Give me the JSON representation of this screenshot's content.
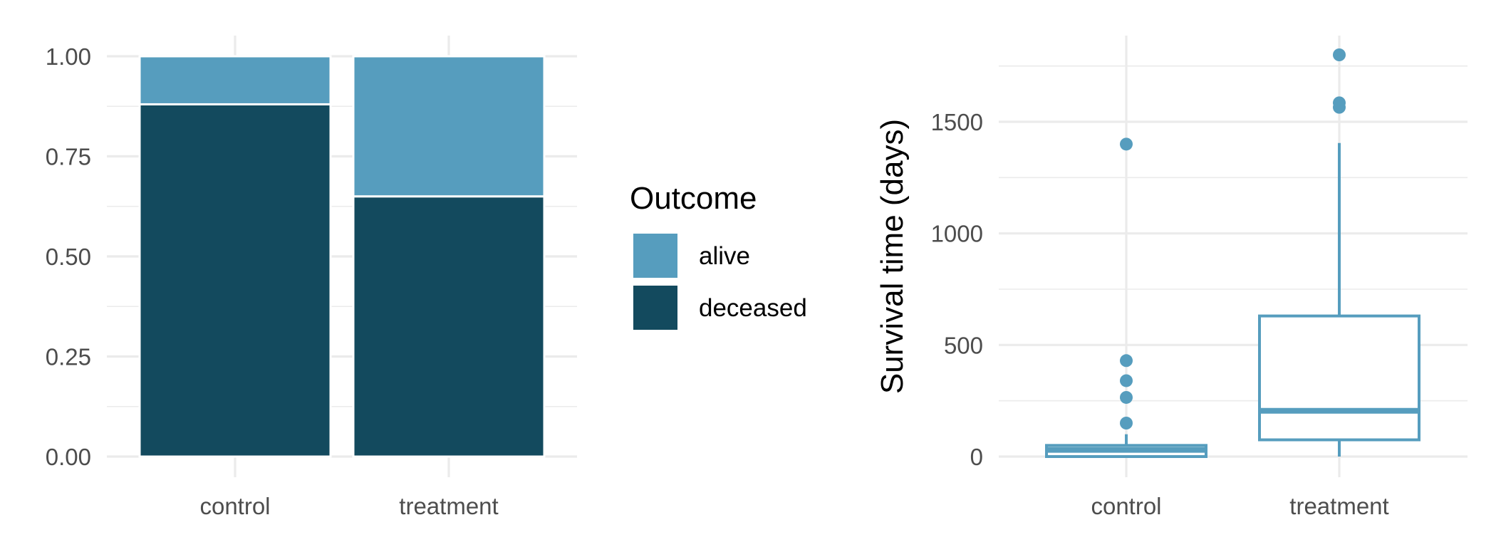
{
  "chart_data": [
    {
      "type": "bar",
      "stacked": true,
      "title": "",
      "xlabel": "",
      "ylabel": "",
      "categories": [
        "control",
        "treatment"
      ],
      "ylim": [
        0,
        1
      ],
      "yticks": [
        0,
        0.25,
        0.5,
        0.75,
        1
      ],
      "ytick_labels": [
        "0.00",
        "0.25",
        "0.50",
        "0.75",
        "1.00"
      ],
      "series": [
        {
          "name": "deceased",
          "values": [
            0.88,
            0.65
          ],
          "color": "#134a5e"
        },
        {
          "name": "alive",
          "values": [
            0.12,
            0.35
          ],
          "color": "#569dbe"
        }
      ],
      "legend": {
        "title": "Outcome",
        "placement": "right",
        "entries": [
          {
            "label": "alive",
            "color": "#569dbe"
          },
          {
            "label": "deceased",
            "color": "#134a5e"
          }
        ]
      },
      "grid": true
    },
    {
      "type": "boxplot",
      "title": "",
      "xlabel": "",
      "ylabel": "Survival time (days)",
      "categories": [
        "control",
        "treatment"
      ],
      "ylim": [
        -30,
        1890
      ],
      "yticks": [
        0,
        500,
        1000,
        1500
      ],
      "ytick_labels": [
        "0",
        "500",
        "1000",
        "1500"
      ],
      "color": "#569dbe",
      "boxes": [
        {
          "category": "control",
          "whisker_low": 0,
          "q1": 0,
          "median": 30,
          "q3": 50,
          "whisker_high": 100,
          "outliers": [
            150,
            265,
            340,
            430,
            1400
          ]
        },
        {
          "category": "treatment",
          "whisker_low": 0,
          "q1": 75,
          "median": 205,
          "q3": 630,
          "whisker_high": 1405,
          "outliers": [
            1565,
            1585,
            1800
          ]
        }
      ],
      "grid": true
    }
  ]
}
